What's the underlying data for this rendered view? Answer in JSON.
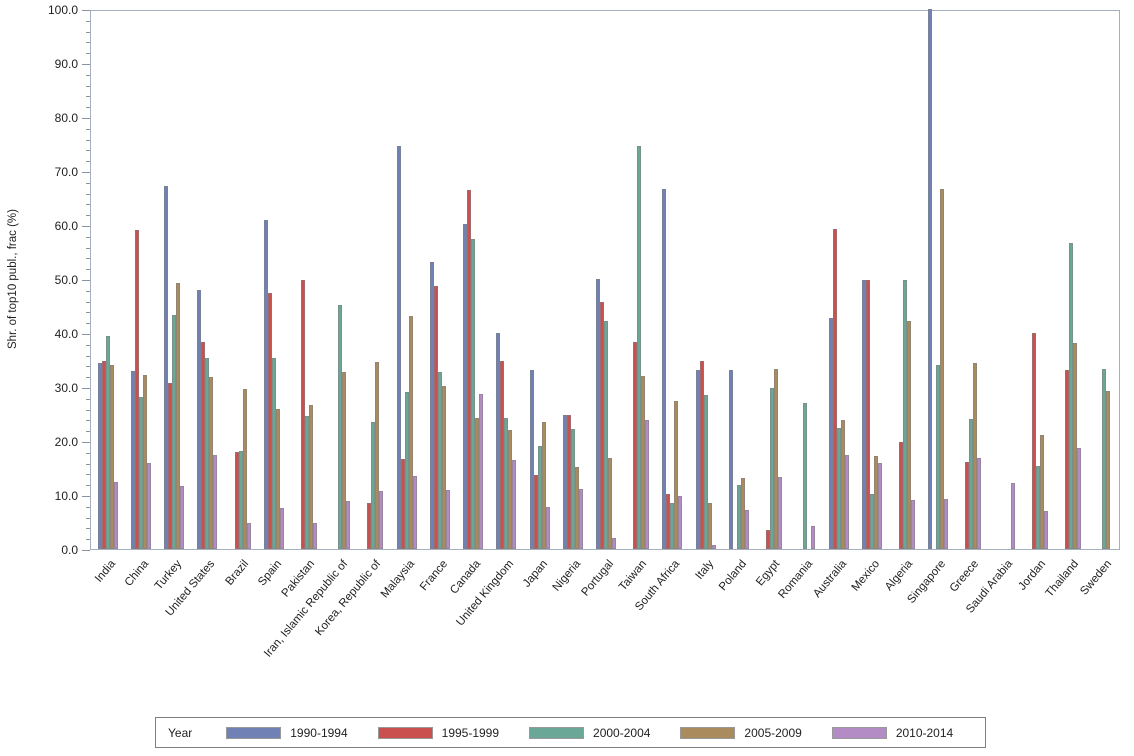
{
  "chart_data": {
    "type": "bar",
    "title": "",
    "xlabel": "",
    "ylabel": "Shr. of top10 publ., frac (%)",
    "ylim": [
      0,
      100
    ],
    "y_tick_step": 10,
    "y_minor_tick_step": 2,
    "y_tick_labels": [
      "0.0",
      "10.0",
      "20.0",
      "30.0",
      "40.0",
      "50.0",
      "60.0",
      "70.0",
      "80.0",
      "90.0",
      "100.0"
    ],
    "grid": false,
    "legend_title": "Year",
    "legend_position": "bottom",
    "categories": [
      "India",
      "China",
      "Turkey",
      "United States",
      "Brazil",
      "Spain",
      "Pakistan",
      "Iran, Islamic Republic of",
      "Korea, Republic of",
      "Malaysia",
      "France",
      "Canada",
      "United Kingdom",
      "Japan",
      "Nigeria",
      "Portugal",
      "Taiwan",
      "South Africa",
      "Italy",
      "Poland",
      "Egypt",
      "Romania",
      "Australia",
      "Mexico",
      "Algeria",
      "Singapore",
      "Greece",
      "Saudi Arabia",
      "Jordan",
      "Thailand",
      "Sweden"
    ],
    "series": [
      {
        "name": "1990-1994",
        "color": "#7081B5",
        "values": [
          34.4,
          33.0,
          67.3,
          47.9,
          null,
          61.0,
          null,
          null,
          null,
          74.7,
          53.2,
          60.1,
          40.0,
          33.2,
          24.9,
          50.0,
          null,
          66.7,
          33.2,
          33.2,
          null,
          null,
          42.8,
          49.8,
          null,
          100.0,
          null,
          null,
          null,
          null,
          null
        ]
      },
      {
        "name": "1995-1999",
        "color": "#C9504E",
        "values": [
          34.8,
          59.0,
          30.7,
          38.4,
          17.9,
          47.4,
          49.9,
          null,
          8.6,
          16.6,
          48.7,
          66.4,
          34.9,
          13.7,
          24.9,
          45.7,
          38.4,
          10.2,
          34.9,
          null,
          3.5,
          null,
          59.2,
          49.8,
          19.8,
          null,
          16.2,
          null,
          40.0,
          33.2,
          null
        ]
      },
      {
        "name": "2000-2004",
        "color": "#6BA797",
        "values": [
          39.4,
          28.1,
          43.3,
          35.3,
          18.1,
          35.3,
          24.7,
          45.2,
          23.6,
          29.1,
          32.7,
          57.4,
          24.2,
          19.0,
          22.2,
          42.3,
          74.7,
          8.6,
          28.5,
          11.9,
          29.8,
          27.1,
          22.4,
          10.1,
          49.9,
          34.0,
          24.1,
          null,
          15.4,
          56.7,
          33.3
        ]
      },
      {
        "name": "2005-2009",
        "color": "#A98B5E",
        "values": [
          34.1,
          32.3,
          49.3,
          31.9,
          29.7,
          25.9,
          26.7,
          32.7,
          34.7,
          43.2,
          30.2,
          24.3,
          22.0,
          23.5,
          15.2,
          16.8,
          32.0,
          27.4,
          8.6,
          13.2,
          33.4,
          null,
          23.9,
          17.3,
          42.2,
          66.7,
          34.5,
          null,
          21.2,
          38.2,
          29.2
        ]
      },
      {
        "name": "2010-2014",
        "color": "#B38CC6",
        "values": [
          12.5,
          16.0,
          11.6,
          17.5,
          4.9,
          7.6,
          4.9,
          8.9,
          10.7,
          13.6,
          10.9,
          28.7,
          16.4,
          7.8,
          11.2,
          2.1,
          23.9,
          9.8,
          0.8,
          7.2,
          13.4,
          4.2,
          17.5,
          16.0,
          9.1,
          9.2,
          16.8,
          12.3,
          7.1,
          18.7,
          null
        ]
      }
    ]
  },
  "colors": {
    "frame": "#a6b0bc",
    "tick": "#8a94a0",
    "text": "#1f1f1f",
    "legend_border": "#7f7f7f",
    "bar_border": "#828282"
  }
}
